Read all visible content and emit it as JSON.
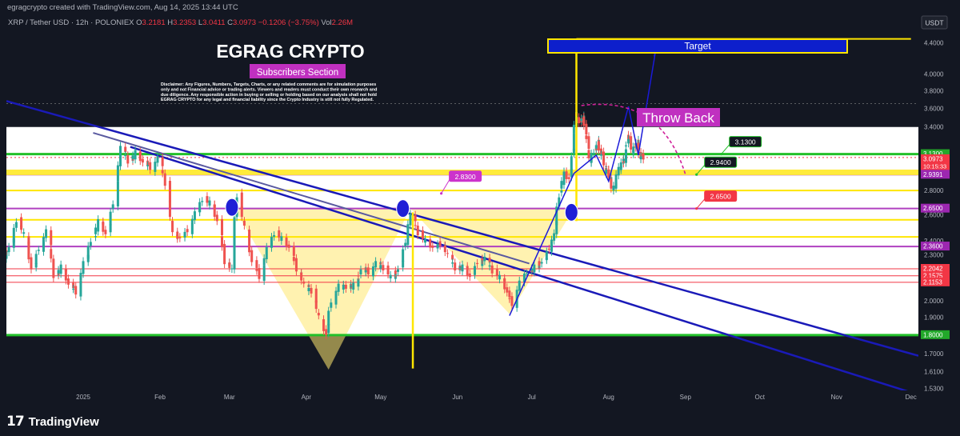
{
  "credit": "egragcrypto created with TradingView.com, Aug 14, 2025 13:44 UTC",
  "header": {
    "symbol": "XRP / Tether USD · 12h · POLONIEX",
    "o_label": "O",
    "o_value": "3.2181",
    "h_label": "H",
    "h_value": "3.2353",
    "l_label": "L",
    "l_value": "3.0411",
    "c_label": "C",
    "c_value": "3.0973",
    "change": "−0.1206 (−3.75%)",
    "vol_label": "Vol",
    "vol_value": "2.26M"
  },
  "currency_button": "USDT",
  "overlay": {
    "title": "EGRAG CRYPTO",
    "subtitle": "Subscribers Section",
    "disclaimer_lines": [
      "Disclaimer: Any Figures, Numbers, Targets, Charts, or any related comments are for simulation purposes",
      "only and not Financial advice or trading alerts. Viewers and readers must conduct their own research and",
      "due diligence. Any responsible action in buying or selling or holding based on our analysis shall not hold",
      "EGRAG CRYPTO for any legal and financial liability since the Crypto Industry is still not fully Regulated."
    ],
    "target_label": "Target",
    "throwback_label": "Throw Back"
  },
  "footer": {
    "brand": "TradingView",
    "logo_glyph": "17"
  },
  "colors": {
    "background": "#131722",
    "grid": "#1f2430",
    "candle_up": "#26a69a",
    "candle_down": "#ef5350",
    "yellow_band": "#ffeb3b",
    "green_line": "#4caf50",
    "red_line": "#f23645",
    "magenta": "#cc33cc",
    "blue_line": "#1a1ab8",
    "target_fill": "#0d1fcc"
  },
  "chart_data": {
    "type": "candlestick",
    "timeframe": "12h",
    "x_tick_labels": [
      "2025",
      "Feb",
      "Mar",
      "Apr",
      "May",
      "Jun",
      "Jul",
      "Aug",
      "Sep",
      "Oct",
      "Nov",
      "Dec"
    ],
    "x_range": [
      "2024-12-01",
      "2025-12-04"
    ],
    "y_tick_labels": [
      "4.4000",
      "4.0000",
      "3.8000",
      "3.6000",
      "3.4000",
      "2.8000",
      "2.6000",
      "2.4000",
      "2.3000",
      "2.0000",
      "1.9000",
      "1.7000",
      "1.6100",
      "1.5300"
    ],
    "y_scale": "log",
    "ylim": [
      1.52,
      4.75
    ],
    "current_price": "3.0973",
    "countdown": "10:15:33",
    "price_labels": [
      {
        "value": "3.1300",
        "color": "green"
      },
      {
        "value": "3.0973",
        "color": "red"
      },
      {
        "value": "2.9391",
        "color": "purple"
      },
      {
        "value": "2.6500",
        "color": "purple"
      },
      {
        "value": "2.3600",
        "color": "purple"
      },
      {
        "value": "2.2042",
        "color": "red"
      },
      {
        "value": "2.1575",
        "color": "red"
      },
      {
        "value": "2.1153",
        "color": "red"
      },
      {
        "value": "1.8000",
        "color": "green"
      }
    ],
    "horizontal_levels": [
      {
        "value": 3.13,
        "kind": "green"
      },
      {
        "value": 2.95,
        "kind": "yellow"
      },
      {
        "value": 2.94,
        "kind": "purple"
      },
      {
        "value": 2.8,
        "kind": "yellow"
      },
      {
        "value": 2.65,
        "kind": "purple"
      },
      {
        "value": 2.56,
        "kind": "yellow"
      },
      {
        "value": 2.43,
        "kind": "yellow"
      },
      {
        "value": 2.36,
        "kind": "purple"
      },
      {
        "value": 2.2042,
        "kind": "red"
      },
      {
        "value": 2.1575,
        "kind": "red"
      },
      {
        "value": 2.1153,
        "kind": "red"
      },
      {
        "value": 1.8,
        "kind": "green"
      }
    ],
    "callouts": [
      {
        "text": "3.1300",
        "value": 3.13,
        "style": "green"
      },
      {
        "text": "2.9400",
        "value": 2.94,
        "style": "green"
      },
      {
        "text": "2.8300",
        "value": 2.83,
        "style": "magenta"
      },
      {
        "text": "2.6500",
        "value": 2.65,
        "style": "red"
      }
    ],
    "candles": [
      [
        "2024-12-01",
        2.3,
        2.35
      ],
      [
        "2024-12-04",
        2.35,
        2.55
      ],
      [
        "2024-12-07",
        2.55,
        2.45
      ],
      [
        "2024-12-10",
        2.45,
        2.2
      ],
      [
        "2024-12-13",
        2.2,
        2.35
      ],
      [
        "2024-12-16",
        2.35,
        2.48
      ],
      [
        "2024-12-19",
        2.48,
        2.15
      ],
      [
        "2024-12-22",
        2.15,
        2.22
      ],
      [
        "2024-12-25",
        2.22,
        2.1
      ],
      [
        "2024-12-28",
        2.1,
        2.05
      ],
      [
        "2024-12-31",
        2.05,
        2.25
      ],
      [
        "2025-01-03",
        2.25,
        2.4
      ],
      [
        "2025-01-06",
        2.4,
        2.55
      ],
      [
        "2025-01-09",
        2.55,
        2.45
      ],
      [
        "2025-01-12",
        2.45,
        2.7
      ],
      [
        "2025-01-15",
        2.7,
        3.2
      ],
      [
        "2025-01-18",
        3.2,
        3.05
      ],
      [
        "2025-01-21",
        3.05,
        3.15
      ],
      [
        "2025-01-24",
        3.15,
        3.05
      ],
      [
        "2025-01-27",
        3.05,
        3.0
      ],
      [
        "2025-01-30",
        3.0,
        3.1
      ],
      [
        "2025-02-02",
        3.1,
        2.85
      ],
      [
        "2025-02-05",
        2.85,
        2.45
      ],
      [
        "2025-02-08",
        2.45,
        2.42
      ],
      [
        "2025-02-11",
        2.42,
        2.48
      ],
      [
        "2025-02-14",
        2.48,
        2.62
      ],
      [
        "2025-02-17",
        2.62,
        2.72
      ],
      [
        "2025-02-20",
        2.72,
        2.7
      ],
      [
        "2025-02-23",
        2.7,
        2.55
      ],
      [
        "2025-02-26",
        2.55,
        2.25
      ],
      [
        "2025-03-01",
        2.25,
        2.2
      ],
      [
        "2025-03-03",
        2.2,
        2.75
      ],
      [
        "2025-03-06",
        2.75,
        2.5
      ],
      [
        "2025-03-09",
        2.5,
        2.25
      ],
      [
        "2025-03-12",
        2.25,
        2.15
      ],
      [
        "2025-03-15",
        2.15,
        2.35
      ],
      [
        "2025-03-18",
        2.35,
        2.45
      ],
      [
        "2025-03-21",
        2.45,
        2.42
      ],
      [
        "2025-03-24",
        2.42,
        2.35
      ],
      [
        "2025-03-27",
        2.35,
        2.2
      ],
      [
        "2025-03-30",
        2.2,
        2.1
      ],
      [
        "2025-04-02",
        2.1,
        2.05
      ],
      [
        "2025-04-05",
        2.05,
        1.9
      ],
      [
        "2025-04-08",
        1.9,
        1.8
      ],
      [
        "2025-04-10",
        1.8,
        2.0
      ],
      [
        "2025-04-13",
        2.0,
        2.1
      ],
      [
        "2025-04-16",
        2.1,
        2.08
      ],
      [
        "2025-04-19",
        2.08,
        2.1
      ],
      [
        "2025-04-22",
        2.1,
        2.2
      ],
      [
        "2025-04-25",
        2.2,
        2.18
      ],
      [
        "2025-04-28",
        2.18,
        2.25
      ],
      [
        "2025-05-01",
        2.25,
        2.2
      ],
      [
        "2025-05-04",
        2.2,
        2.15
      ],
      [
        "2025-05-07",
        2.15,
        2.2
      ],
      [
        "2025-05-10",
        2.2,
        2.4
      ],
      [
        "2025-05-12",
        2.4,
        2.6
      ],
      [
        "2025-05-15",
        2.6,
        2.45
      ],
      [
        "2025-05-18",
        2.45,
        2.4
      ],
      [
        "2025-05-21",
        2.4,
        2.35
      ],
      [
        "2025-05-24",
        2.35,
        2.38
      ],
      [
        "2025-05-27",
        2.38,
        2.3
      ],
      [
        "2025-05-30",
        2.3,
        2.2
      ],
      [
        "2025-06-02",
        2.2,
        2.22
      ],
      [
        "2025-06-05",
        2.22,
        2.15
      ],
      [
        "2025-06-08",
        2.15,
        2.25
      ],
      [
        "2025-06-11",
        2.25,
        2.28
      ],
      [
        "2025-06-14",
        2.28,
        2.18
      ],
      [
        "2025-06-17",
        2.18,
        2.15
      ],
      [
        "2025-06-20",
        2.15,
        2.05
      ],
      [
        "2025-06-22",
        2.05,
        1.98
      ],
      [
        "2025-06-25",
        1.98,
        2.12
      ],
      [
        "2025-06-28",
        2.12,
        2.18
      ],
      [
        "2025-07-01",
        2.18,
        2.22
      ],
      [
        "2025-07-04",
        2.22,
        2.25
      ],
      [
        "2025-07-07",
        2.25,
        2.35
      ],
      [
        "2025-07-09",
        2.35,
        2.45
      ],
      [
        "2025-07-11",
        2.45,
        2.75
      ],
      [
        "2025-07-13",
        2.75,
        2.95
      ],
      [
        "2025-07-15",
        2.95,
        2.9
      ],
      [
        "2025-07-17",
        2.9,
        3.2
      ],
      [
        "2025-07-18",
        3.2,
        3.55
      ],
      [
        "2025-07-19",
        3.55,
        3.45
      ],
      [
        "2025-07-21",
        3.45,
        3.5
      ],
      [
        "2025-07-22",
        3.5,
        3.4
      ],
      [
        "2025-07-23",
        3.4,
        3.2
      ],
      [
        "2025-07-24",
        3.2,
        3.05
      ],
      [
        "2025-07-25",
        3.05,
        3.15
      ],
      [
        "2025-07-27",
        3.15,
        3.25
      ],
      [
        "2025-07-28",
        3.25,
        3.15
      ],
      [
        "2025-07-29",
        3.15,
        3.1
      ],
      [
        "2025-07-30",
        3.1,
        3.0
      ],
      [
        "2025-07-31",
        3.0,
        2.95
      ],
      [
        "2025-08-01",
        2.95,
        2.9
      ],
      [
        "2025-08-02",
        2.9,
        2.8
      ],
      [
        "2025-08-03",
        2.8,
        2.85
      ],
      [
        "2025-08-04",
        2.85,
        3.0
      ],
      [
        "2025-08-06",
        3.0,
        3.05
      ],
      [
        "2025-08-07",
        3.05,
        3.1
      ],
      [
        "2025-08-08",
        3.1,
        3.3
      ],
      [
        "2025-08-09",
        3.3,
        3.25
      ],
      [
        "2025-08-10",
        3.25,
        3.15
      ],
      [
        "2025-08-11",
        3.15,
        3.2
      ],
      [
        "2025-08-12",
        3.2,
        3.25
      ],
      [
        "2025-08-13",
        3.25,
        3.1
      ],
      [
        "2025-08-14",
        3.1,
        3.0973
      ]
    ]
  }
}
